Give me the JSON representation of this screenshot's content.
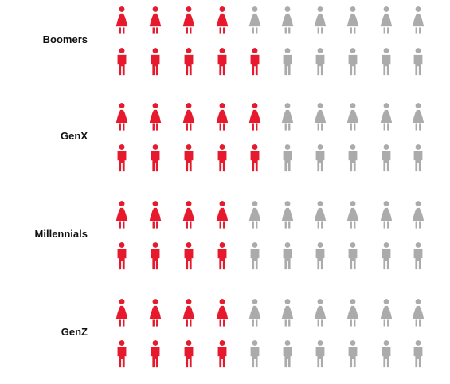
{
  "chart_data": {
    "type": "pictogram",
    "icons_per_row": 10,
    "colors": {
      "filled": "#E8192C",
      "empty": "#ABABAB"
    },
    "series": [
      {
        "icon": "woman-icon"
      },
      {
        "icon": "man-icon"
      }
    ],
    "categories": [
      {
        "label": "Boomers",
        "values": [
          4.5,
          5.1
        ]
      },
      {
        "label": "GenX",
        "values": [
          5.0,
          5.0
        ]
      },
      {
        "label": "Millennials",
        "values": [
          4.0,
          4.4
        ]
      },
      {
        "label": "GenZ",
        "values": [
          4.0,
          4.3
        ]
      }
    ]
  }
}
